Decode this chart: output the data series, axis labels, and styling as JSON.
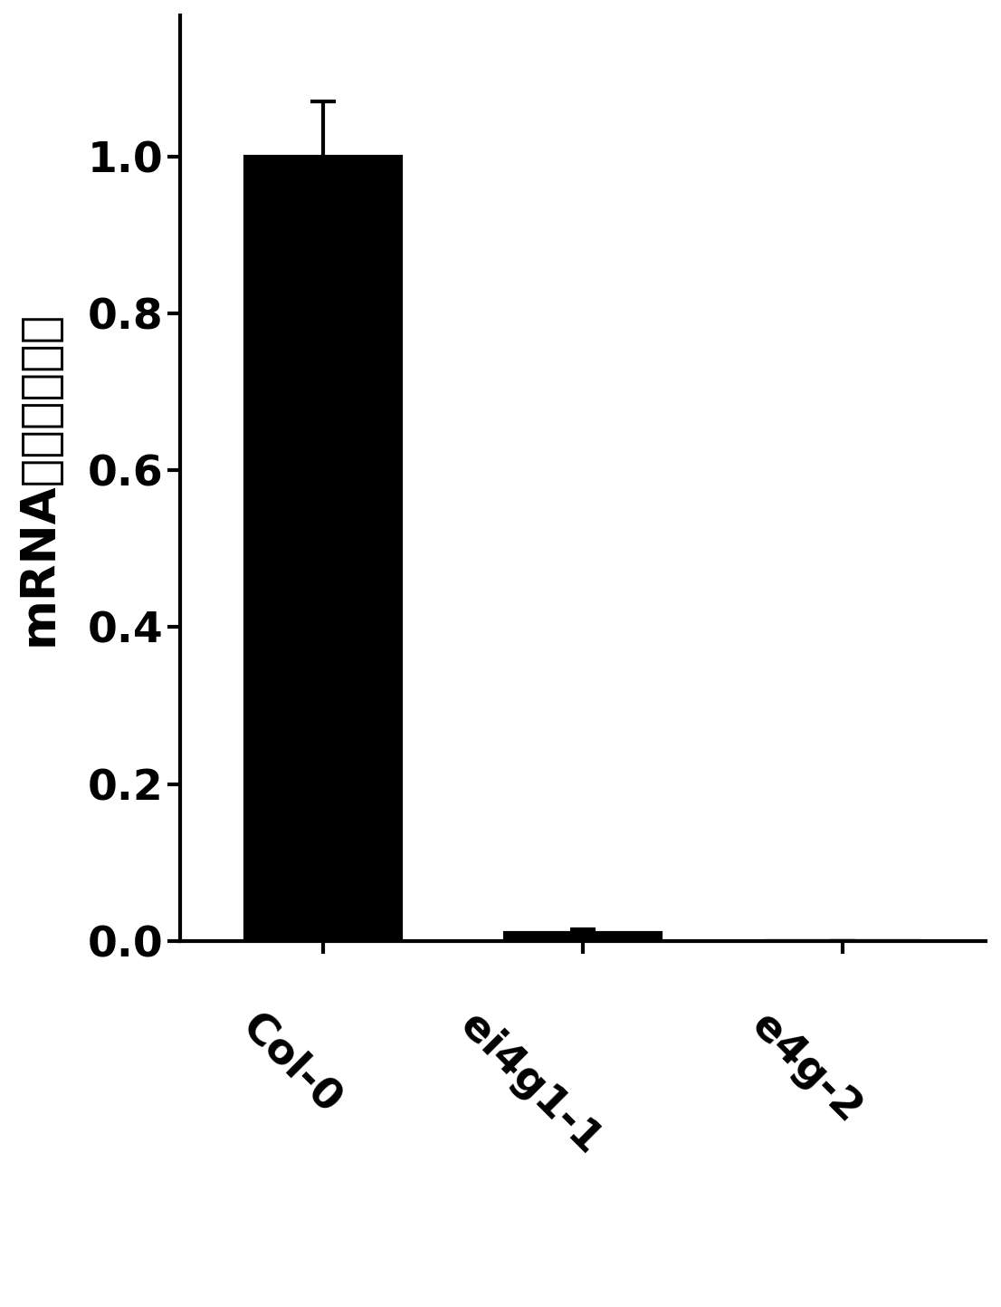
{
  "categories": [
    "Col-0",
    "ei4g1-1",
    "e4g-2"
  ],
  "values": [
    1.0,
    0.01,
    0.0
  ],
  "errors": [
    0.07,
    0.005,
    0.0
  ],
  "bar_color": "#000000",
  "bar_hatch": ".....",
  "hatch_color": "#ffffff",
  "bar_edgecolor": "#000000",
  "ylabel": "mRNA相对表达水平",
  "ylim": [
    0.0,
    1.18
  ],
  "yticks": [
    0.0,
    0.2,
    0.4,
    0.6,
    0.8,
    1.0
  ],
  "background_color": "#ffffff",
  "ylabel_fontsize": 38,
  "tick_fontsize": 34,
  "xlabel_fontsize": 34,
  "bar_width": 0.6,
  "linewidth": 3.0,
  "cap_size": 10,
  "x_positions": [
    0,
    1,
    2
  ]
}
